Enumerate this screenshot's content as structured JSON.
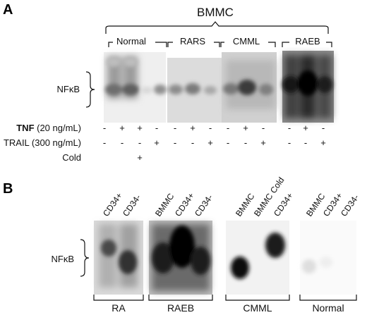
{
  "panel_a": {
    "letter": "A",
    "title": "BMMC",
    "groups": [
      "Normal",
      "RARS",
      "CMML",
      "RAEB"
    ],
    "band_label": "NFκB",
    "rows": [
      {
        "bold": "TNF",
        "normal": " (20 ng/mL)",
        "marks": [
          "-",
          "+",
          "+",
          "-",
          "-",
          "+",
          "-",
          "-",
          "+",
          "-",
          "-",
          "+",
          "-"
        ]
      },
      {
        "bold": "",
        "normal": "TRAIL (300 ng/mL)",
        "marks": [
          "-",
          "-",
          "-",
          "+",
          "-",
          "-",
          "+",
          "-",
          "-",
          "+",
          "-",
          "-",
          "+"
        ]
      },
      {
        "bold": "",
        "normal": "Cold",
        "marks": [
          "",
          "",
          "+",
          "",
          "",
          "",
          "",
          "",
          "",
          "",
          "",
          "",
          ""
        ]
      }
    ]
  },
  "panel_b": {
    "letter": "B",
    "band_label": "NFκB",
    "groups": [
      {
        "name": "RA",
        "lanes": [
          "CD34+",
          "CD34-"
        ]
      },
      {
        "name": "RAEB",
        "lanes": [
          "BMMC",
          "CD34+",
          "CD34-"
        ]
      },
      {
        "name": "CMML",
        "lanes": [
          "BMMC",
          "BMMC Cold",
          "CD34+"
        ]
      },
      {
        "name": "Normal",
        "lanes": [
          "BMMC",
          "CD34+",
          "CD34-"
        ]
      }
    ]
  }
}
